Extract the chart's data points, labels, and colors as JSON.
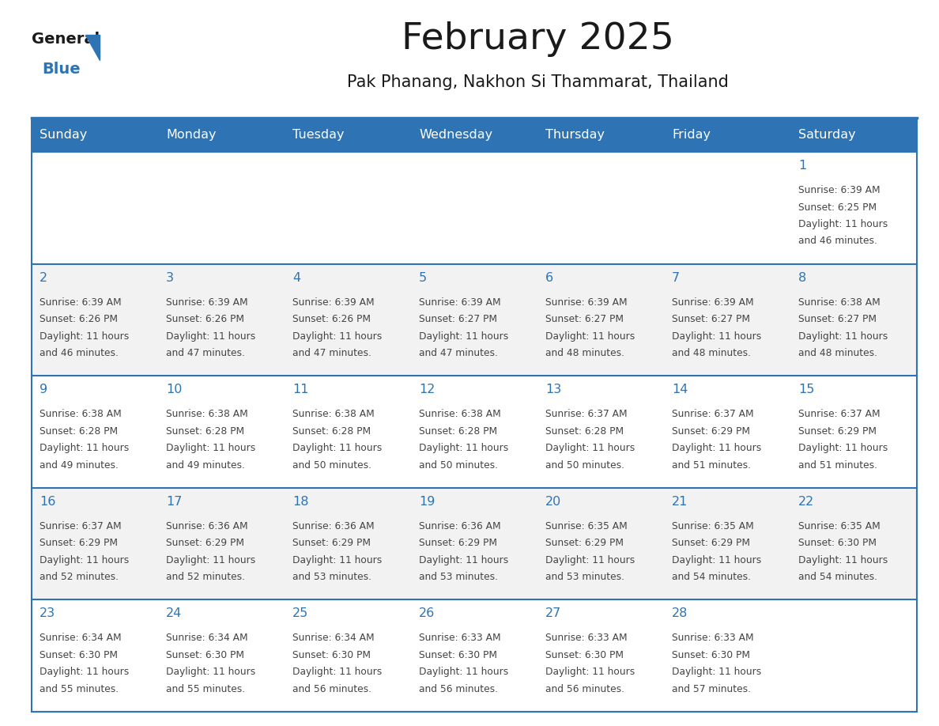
{
  "title": "February 2025",
  "subtitle": "Pak Phanang, Nakhon Si Thammarat, Thailand",
  "days_of_week": [
    "Sunday",
    "Monday",
    "Tuesday",
    "Wednesday",
    "Thursday",
    "Friday",
    "Saturday"
  ],
  "header_bg": "#2E74B5",
  "header_text": "#FFFFFF",
  "row_bg_odd": "#FFFFFF",
  "row_bg_even": "#F2F2F2",
  "cell_border": "#2E74B5",
  "text_color": "#444444",
  "day_number_color": "#2E74B5",
  "title_color": "#1a1a1a",
  "subtitle_color": "#1a1a1a",
  "calendar": [
    [
      null,
      null,
      null,
      null,
      null,
      null,
      {
        "day": 1,
        "sunrise": "6:39 AM",
        "sunset": "6:25 PM",
        "daylight": "11 hours and 46 minutes."
      }
    ],
    [
      {
        "day": 2,
        "sunrise": "6:39 AM",
        "sunset": "6:26 PM",
        "daylight": "11 hours and 46 minutes."
      },
      {
        "day": 3,
        "sunrise": "6:39 AM",
        "sunset": "6:26 PM",
        "daylight": "11 hours and 47 minutes."
      },
      {
        "day": 4,
        "sunrise": "6:39 AM",
        "sunset": "6:26 PM",
        "daylight": "11 hours and 47 minutes."
      },
      {
        "day": 5,
        "sunrise": "6:39 AM",
        "sunset": "6:27 PM",
        "daylight": "11 hours and 47 minutes."
      },
      {
        "day": 6,
        "sunrise": "6:39 AM",
        "sunset": "6:27 PM",
        "daylight": "11 hours and 48 minutes."
      },
      {
        "day": 7,
        "sunrise": "6:39 AM",
        "sunset": "6:27 PM",
        "daylight": "11 hours and 48 minutes."
      },
      {
        "day": 8,
        "sunrise": "6:38 AM",
        "sunset": "6:27 PM",
        "daylight": "11 hours and 48 minutes."
      }
    ],
    [
      {
        "day": 9,
        "sunrise": "6:38 AM",
        "sunset": "6:28 PM",
        "daylight": "11 hours and 49 minutes."
      },
      {
        "day": 10,
        "sunrise": "6:38 AM",
        "sunset": "6:28 PM",
        "daylight": "11 hours and 49 minutes."
      },
      {
        "day": 11,
        "sunrise": "6:38 AM",
        "sunset": "6:28 PM",
        "daylight": "11 hours and 50 minutes."
      },
      {
        "day": 12,
        "sunrise": "6:38 AM",
        "sunset": "6:28 PM",
        "daylight": "11 hours and 50 minutes."
      },
      {
        "day": 13,
        "sunrise": "6:37 AM",
        "sunset": "6:28 PM",
        "daylight": "11 hours and 50 minutes."
      },
      {
        "day": 14,
        "sunrise": "6:37 AM",
        "sunset": "6:29 PM",
        "daylight": "11 hours and 51 minutes."
      },
      {
        "day": 15,
        "sunrise": "6:37 AM",
        "sunset": "6:29 PM",
        "daylight": "11 hours and 51 minutes."
      }
    ],
    [
      {
        "day": 16,
        "sunrise": "6:37 AM",
        "sunset": "6:29 PM",
        "daylight": "11 hours and 52 minutes."
      },
      {
        "day": 17,
        "sunrise": "6:36 AM",
        "sunset": "6:29 PM",
        "daylight": "11 hours and 52 minutes."
      },
      {
        "day": 18,
        "sunrise": "6:36 AM",
        "sunset": "6:29 PM",
        "daylight": "11 hours and 53 minutes."
      },
      {
        "day": 19,
        "sunrise": "6:36 AM",
        "sunset": "6:29 PM",
        "daylight": "11 hours and 53 minutes."
      },
      {
        "day": 20,
        "sunrise": "6:35 AM",
        "sunset": "6:29 PM",
        "daylight": "11 hours and 53 minutes."
      },
      {
        "day": 21,
        "sunrise": "6:35 AM",
        "sunset": "6:29 PM",
        "daylight": "11 hours and 54 minutes."
      },
      {
        "day": 22,
        "sunrise": "6:35 AM",
        "sunset": "6:30 PM",
        "daylight": "11 hours and 54 minutes."
      }
    ],
    [
      {
        "day": 23,
        "sunrise": "6:34 AM",
        "sunset": "6:30 PM",
        "daylight": "11 hours and 55 minutes."
      },
      {
        "day": 24,
        "sunrise": "6:34 AM",
        "sunset": "6:30 PM",
        "daylight": "11 hours and 55 minutes."
      },
      {
        "day": 25,
        "sunrise": "6:34 AM",
        "sunset": "6:30 PM",
        "daylight": "11 hours and 56 minutes."
      },
      {
        "day": 26,
        "sunrise": "6:33 AM",
        "sunset": "6:30 PM",
        "daylight": "11 hours and 56 minutes."
      },
      {
        "day": 27,
        "sunrise": "6:33 AM",
        "sunset": "6:30 PM",
        "daylight": "11 hours and 56 minutes."
      },
      {
        "day": 28,
        "sunrise": "6:33 AM",
        "sunset": "6:30 PM",
        "daylight": "11 hours and 57 minutes."
      },
      null
    ]
  ]
}
